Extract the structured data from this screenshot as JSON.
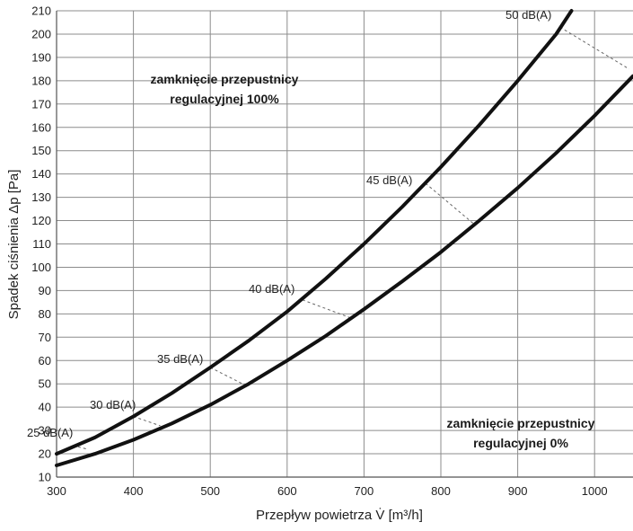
{
  "chart_data": {
    "type": "line",
    "title": "",
    "xlabel": "Przepływ powietrza V̇ [m³/h]",
    "ylabel": "Spadek ciśnienia Δp [Pa]",
    "xlim": [
      300,
      1050
    ],
    "ylim": [
      10,
      210
    ],
    "x_ticks": [
      "300",
      "400",
      "500",
      "600",
      "700",
      "800",
      "900",
      "1000"
    ],
    "y_ticks": [
      "10",
      "20",
      "30",
      "40",
      "50",
      "60",
      "70",
      "80",
      "90",
      "100",
      "110",
      "120",
      "130",
      "140",
      "150",
      "160",
      "170",
      "180",
      "190",
      "200",
      "210"
    ],
    "grid": true,
    "series": [
      {
        "name": "zamknięcie przepustnicy regulacyjnej 100%",
        "x": [
          300,
          350,
          400,
          450,
          500,
          550,
          600,
          650,
          700,
          750,
          800,
          850,
          900,
          950,
          970
        ],
        "y": [
          20,
          27,
          36,
          46,
          57,
          68.5,
          81,
          95,
          110,
          126,
          143,
          161,
          180,
          200,
          210
        ]
      },
      {
        "name": "zamknięcie przepustnicy regulacyjnej 0%",
        "x": [
          300,
          350,
          400,
          450,
          500,
          550,
          600,
          650,
          700,
          750,
          800,
          850,
          900,
          950,
          1000,
          1050
        ],
        "y": [
          15,
          20,
          26,
          33,
          41,
          50,
          60,
          70.5,
          82,
          94,
          106.5,
          120,
          134,
          149,
          165,
          182
        ]
      }
    ],
    "noise_lines": [
      {
        "label": "25 dB(A)",
        "from": [
          328,
          23
        ],
        "to": [
          340,
          22
        ]
      },
      {
        "label": "30 dB(A)",
        "from": [
          400,
          36
        ],
        "to": [
          435,
          32
        ]
      },
      {
        "label": "35 dB(A)",
        "from": [
          500,
          57
        ],
        "to": [
          548,
          49
        ]
      },
      {
        "label": "40 dB(A)",
        "from": [
          620,
          86
        ],
        "to": [
          685,
          78
        ]
      },
      {
        "label": "45 dB(A)",
        "from": [
          780,
          136
        ],
        "to": [
          845,
          118
        ]
      },
      {
        "label": "50 dB(A)",
        "from": [
          955,
          203
        ],
        "to": [
          1045,
          185
        ]
      }
    ],
    "annotations": [
      {
        "lines": [
          "zamknięcie przepustnicy",
          "regulacyjnej 100%"
        ]
      },
      {
        "lines": [
          "zamknięcie przepustnicy",
          "regulacyjnej 0%"
        ]
      }
    ]
  }
}
